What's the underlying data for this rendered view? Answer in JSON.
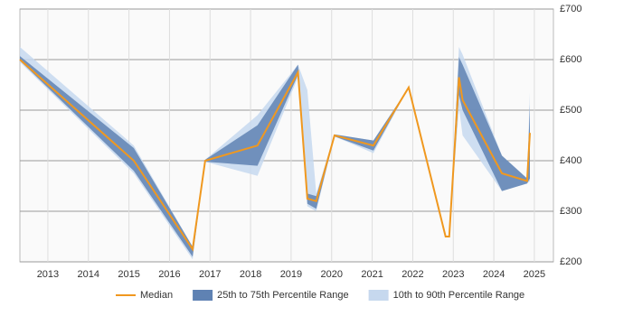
{
  "chart_data": {
    "type": "line",
    "x": [
      2012.31,
      2015.12,
      2016.57,
      2016.88,
      2018.17,
      2019.17,
      2019.4,
      2019.62,
      2020.07,
      2021.03,
      2021.9,
      2022.81,
      2022.9,
      2023.14,
      2023.23,
      2024.2,
      2024.82,
      2024.89
    ],
    "series": [
      {
        "name": "Median",
        "color": "#f0981f",
        "values": [
          600,
          400,
          225,
          400,
          430,
          575,
          325,
          320,
          450,
          430,
          545,
          250,
          250,
          565,
          520,
          375,
          360,
          455
        ]
      }
    ],
    "bands": [
      {
        "name": "10th to 90th Percentile Range",
        "color": "#c6d8ee",
        "low": [
          595,
          375,
          205,
          398,
          370,
          565,
          310,
          300,
          448,
          415,
          545,
          250,
          250,
          505,
          450,
          340,
          355,
          360
        ],
        "high": [
          625,
          430,
          230,
          402,
          490,
          590,
          540,
          335,
          452,
          440,
          545,
          250,
          250,
          625,
          610,
          410,
          365,
          535
        ]
      },
      {
        "name": "25th to 75th Percentile Range",
        "color": "#5f82b3",
        "low": [
          598,
          380,
          210,
          398,
          390,
          570,
          315,
          305,
          448,
          420,
          545,
          250,
          250,
          530,
          500,
          340,
          355,
          365
        ],
        "high": [
          607,
          425,
          230,
          402,
          470,
          590,
          335,
          330,
          452,
          440,
          545,
          250,
          250,
          605,
          590,
          410,
          365,
          510
        ]
      }
    ],
    "legend_order": [
      "Median",
      "25th to 75th Percentile Range",
      "10th to 90th Percentile Range"
    ],
    "xlim": [
      2012.31,
      2025.47
    ],
    "xticks": [
      2013,
      2014,
      2015,
      2016,
      2017,
      2018,
      2019,
      2020,
      2021,
      2022,
      2023,
      2024,
      2025
    ],
    "ylim": [
      200,
      700
    ],
    "yticks": [
      {
        "value": 200,
        "label": "£200"
      },
      {
        "value": 300,
        "label": "£300"
      },
      {
        "value": 400,
        "label": "£400"
      },
      {
        "value": 500,
        "label": "£500"
      },
      {
        "value": 600,
        "label": "£600"
      },
      {
        "value": 700,
        "label": "£700"
      }
    ],
    "grid": true,
    "legend": "bottom"
  }
}
